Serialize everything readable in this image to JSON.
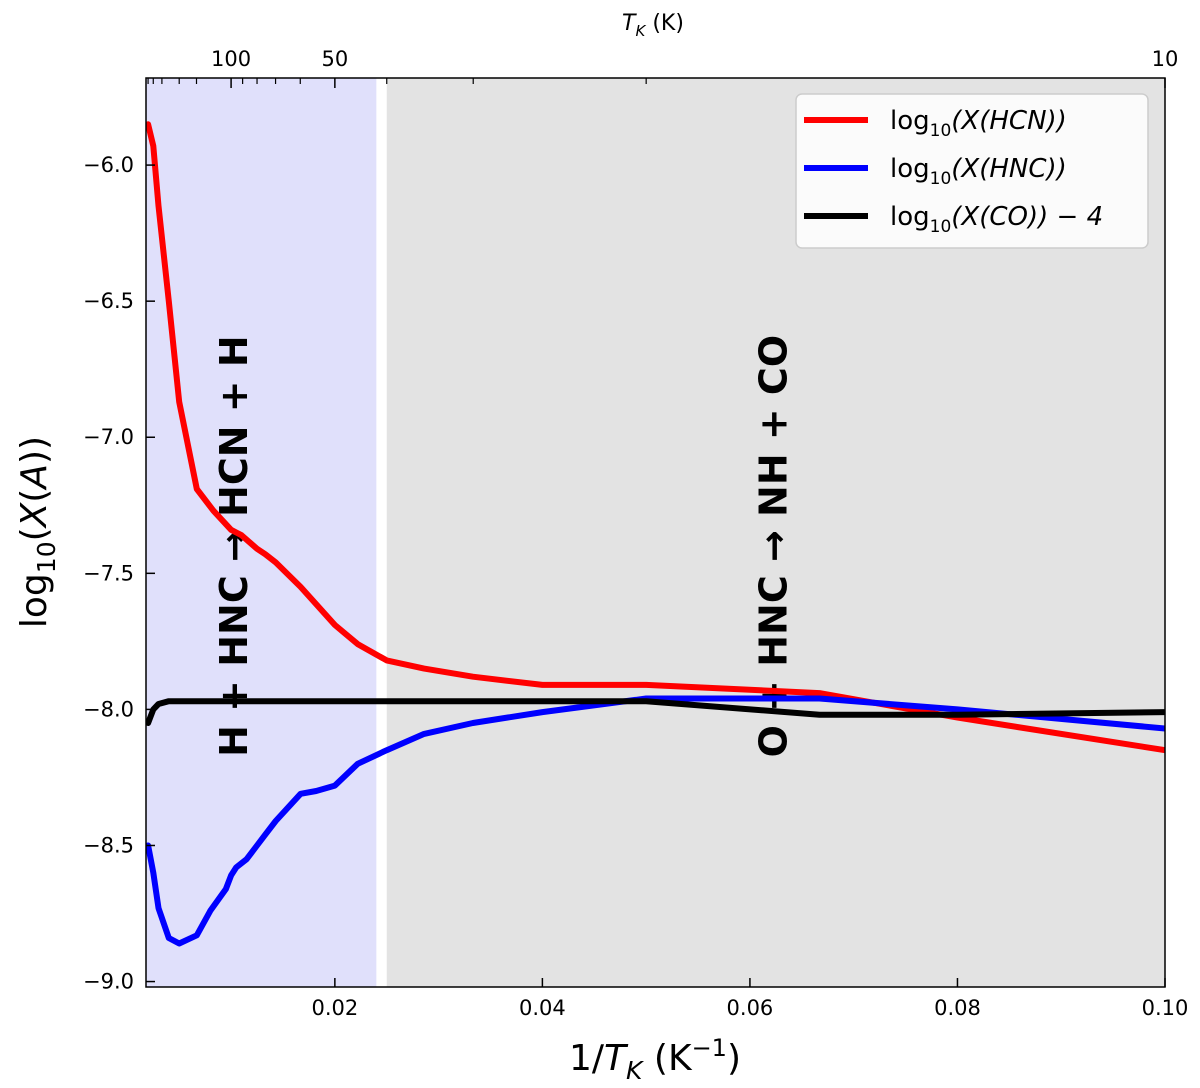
{
  "chart_data": {
    "type": "line",
    "xlabel": "1/T_K (K⁻¹)",
    "ylabel": "log10(X(A))",
    "top_axis_label": "T_K (K)",
    "xlim": [
      0.0018,
      0.1
    ],
    "ylim": [
      -9.02,
      -5.68
    ],
    "x_ticks": [
      0.02,
      0.04,
      0.06,
      0.08,
      0.1
    ],
    "x_tick_labels": [
      "0.02",
      "0.04",
      "0.06",
      "0.08",
      "0.10"
    ],
    "y_ticks": [
      -6.0,
      -6.5,
      -7.0,
      -7.5,
      -8.0,
      -8.5,
      -9.0
    ],
    "y_tick_labels": [
      "−6.0",
      "−6.5",
      "−7.0",
      "−7.5",
      "−8.0",
      "−8.5",
      "−9.0"
    ],
    "top_ticks": [
      {
        "T": 100,
        "label": "100"
      },
      {
        "T": 50,
        "label": "50"
      },
      {
        "T": 10,
        "label": "10"
      }
    ],
    "top_minor_ticks_T": [
      500,
      400,
      300,
      200,
      150,
      90,
      80,
      70,
      60,
      40,
      30,
      20
    ],
    "regions": [
      {
        "name": "h-plus-hnc-region",
        "x0": 0.0018,
        "x1": 0.024,
        "color": "#e0e0fb",
        "label": "H + HNC → HCN + H",
        "label_x": 0.0105,
        "label_y": -7.4
      },
      {
        "name": "o-plus-hnc-region",
        "x0": 0.025,
        "x1": 0.1,
        "color": "#e3e3e3",
        "label": "O + HNC → NH + CO",
        "label_x": 0.0625,
        "label_y": -7.4
      }
    ],
    "series": [
      {
        "name": "HCN",
        "legend": "log10(X(HCN))",
        "color": "#ff0000",
        "x": [
          0.002,
          0.0025,
          0.003,
          0.004,
          0.005,
          0.0067,
          0.0083,
          0.01,
          0.0105,
          0.011,
          0.0125,
          0.0133,
          0.0143,
          0.0167,
          0.02,
          0.0222,
          0.025,
          0.0286,
          0.0333,
          0.04,
          0.05,
          0.0667,
          0.08,
          0.1
        ],
        "y": [
          -5.85,
          -5.93,
          -6.15,
          -6.5,
          -6.87,
          -7.19,
          -7.27,
          -7.34,
          -7.35,
          -7.36,
          -7.41,
          -7.43,
          -7.46,
          -7.55,
          -7.69,
          -7.76,
          -7.82,
          -7.85,
          -7.88,
          -7.91,
          -7.91,
          -7.94,
          -8.03,
          -8.15
        ]
      },
      {
        "name": "HNC",
        "legend": "log10(X(HNC))",
        "color": "#0000ff",
        "x": [
          0.002,
          0.0025,
          0.003,
          0.004,
          0.005,
          0.0067,
          0.008,
          0.0095,
          0.01,
          0.0105,
          0.0115,
          0.0125,
          0.0133,
          0.0143,
          0.0167,
          0.0182,
          0.02,
          0.0222,
          0.025,
          0.0286,
          0.0333,
          0.04,
          0.05,
          0.0667,
          0.08,
          0.1
        ],
        "y": [
          -8.5,
          -8.6,
          -8.73,
          -8.84,
          -8.86,
          -8.83,
          -8.74,
          -8.66,
          -8.61,
          -8.58,
          -8.55,
          -8.5,
          -8.46,
          -8.41,
          -8.31,
          -8.3,
          -8.28,
          -8.2,
          -8.15,
          -8.09,
          -8.05,
          -8.01,
          -7.96,
          -7.96,
          -8.0,
          -8.07
        ]
      },
      {
        "name": "CO",
        "legend": "log10(X(CO)) − 4",
        "color": "#000000",
        "x": [
          0.002,
          0.0025,
          0.003,
          0.004,
          0.005,
          0.01,
          0.02,
          0.04,
          0.05,
          0.0667,
          0.08,
          0.1
        ],
        "y": [
          -8.05,
          -8.0,
          -7.98,
          -7.97,
          -7.97,
          -7.97,
          -7.97,
          -7.97,
          -7.97,
          -8.02,
          -8.02,
          -8.01
        ]
      }
    ],
    "legend_location": "top-right"
  },
  "legend_entries": [
    {
      "base": "log",
      "sub": "10",
      "rest": "(X(HCN))"
    },
    {
      "base": "log",
      "sub": "10",
      "rest": "(X(HNC))"
    },
    {
      "base": "log",
      "sub": "10",
      "rest": "(X(CO)) − 4"
    }
  ]
}
